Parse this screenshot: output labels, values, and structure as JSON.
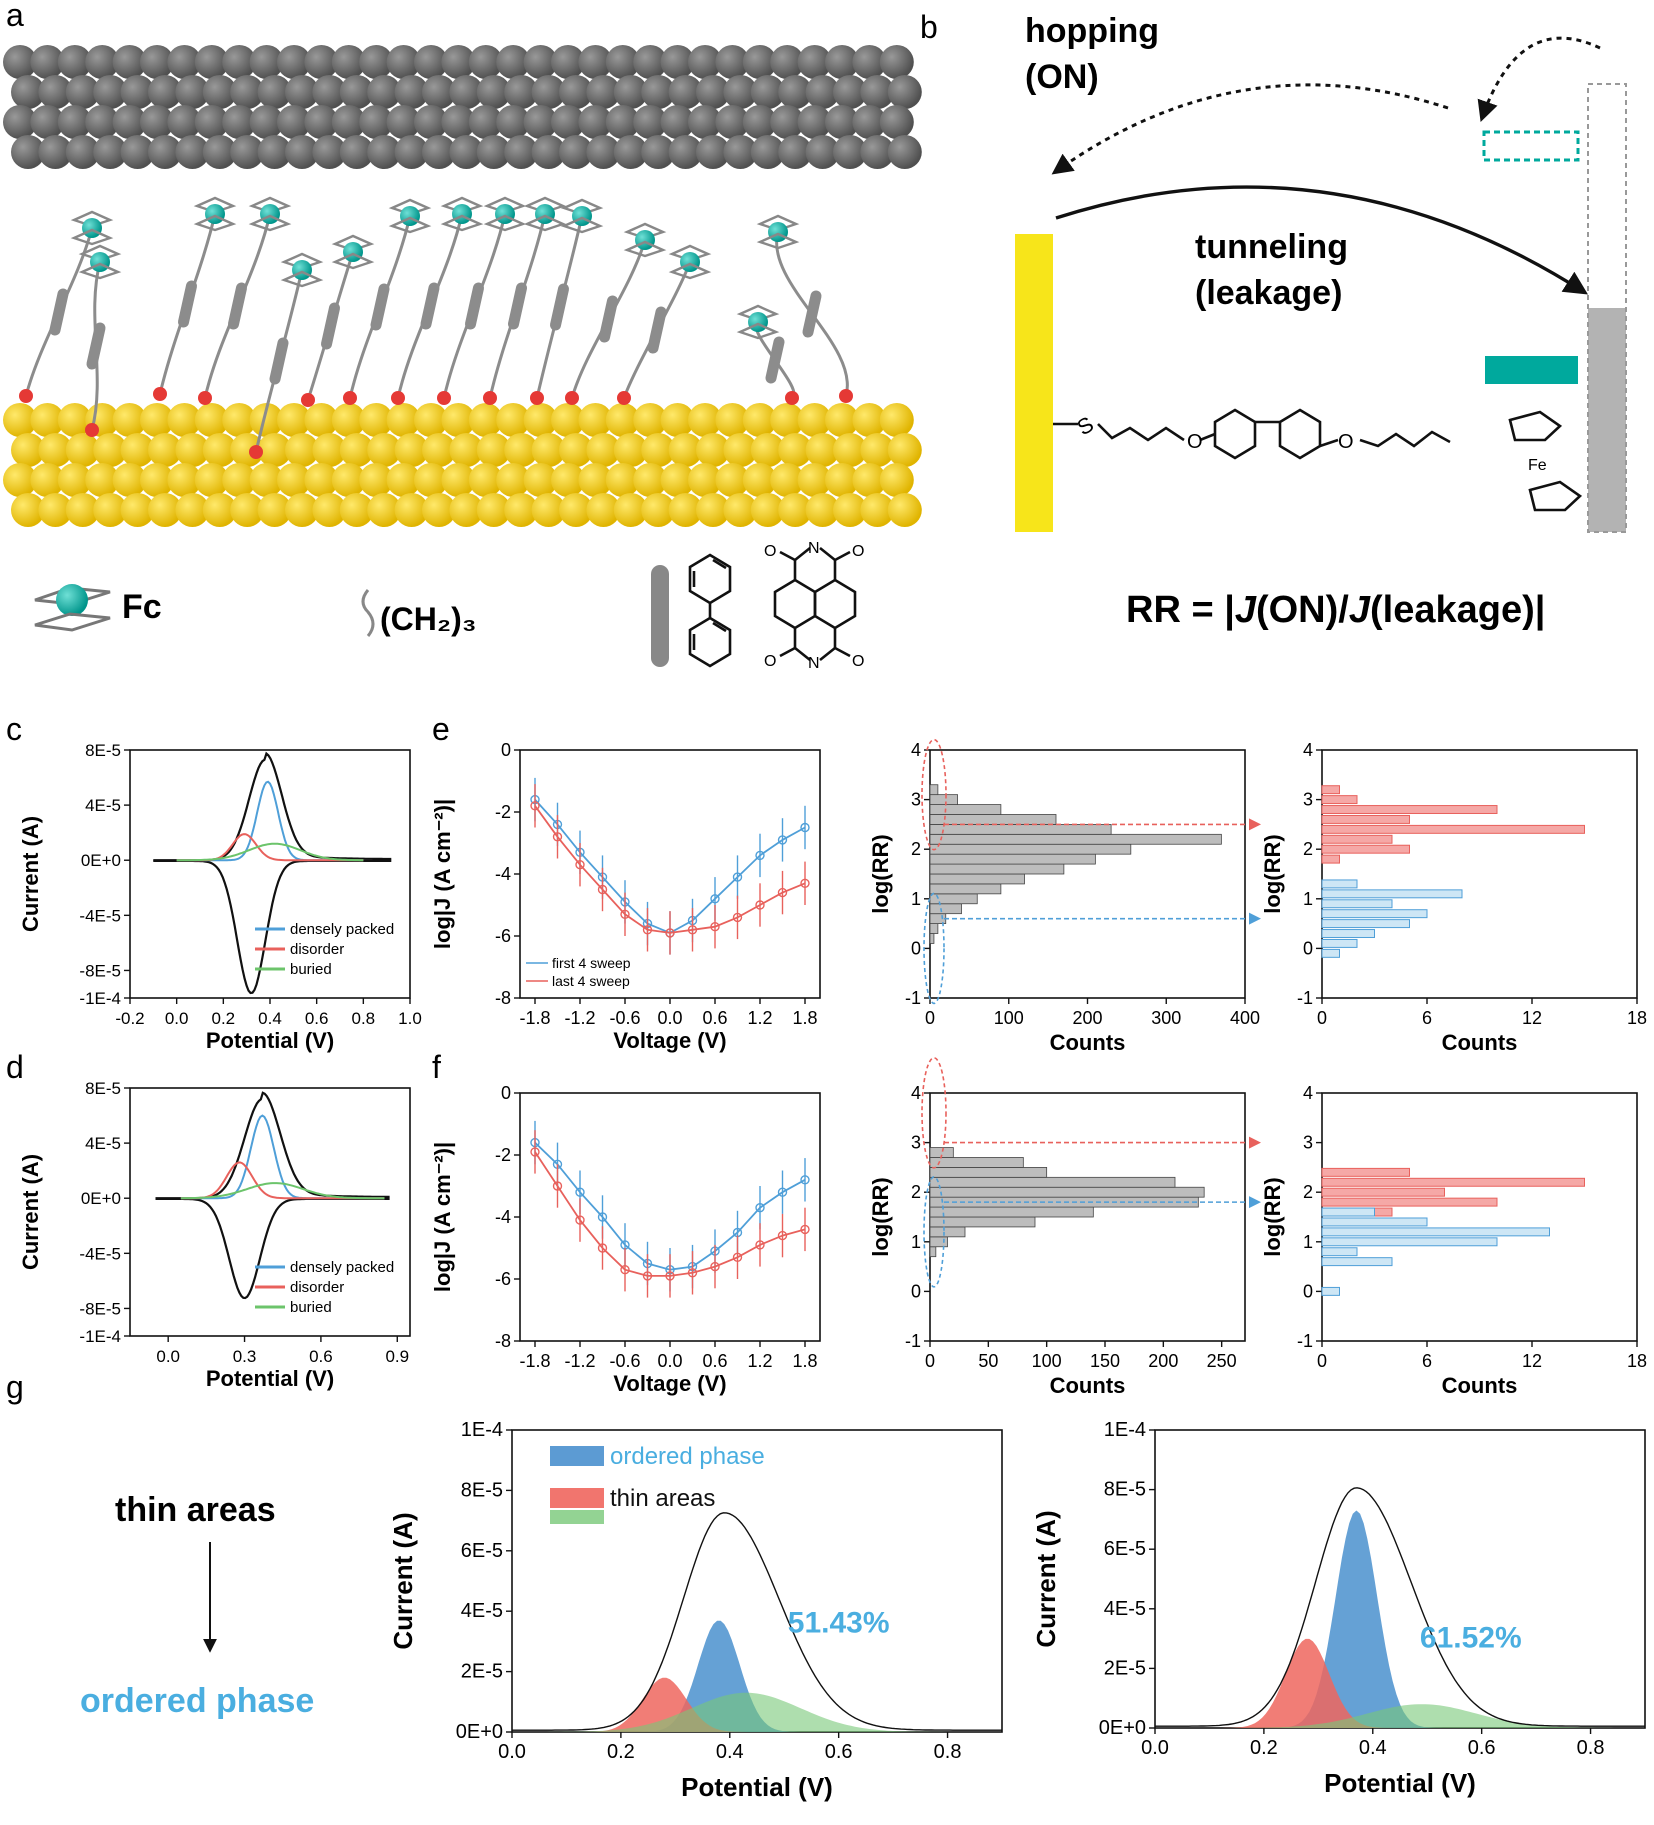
{
  "panels": {
    "a": {
      "letter": "a",
      "legend_fc": "Fc",
      "legend_chain": "(CH₂)₃"
    },
    "b": {
      "letter": "b",
      "hopping_line1": "hopping",
      "hopping_line2": "(ON)",
      "tunneling_line1": "tunneling",
      "tunneling_line2": "(leakage)",
      "rr_equation_prefix": "RR = |",
      "rr_j1": "J",
      "rr_mid": "(ON)/",
      "rr_j2": "J",
      "rr_suffix": "(leakage)|",
      "fe_label": "Fe",
      "s_label": "S",
      "o_label": "O"
    },
    "c": {
      "letter": "c"
    },
    "d": {
      "letter": "d"
    },
    "e": {
      "letter": "e"
    },
    "f": {
      "letter": "f"
    },
    "g": {
      "letter": "g",
      "text_top": "thin areas",
      "text_bottom": "ordered phase"
    },
    "naphthalimide_atoms": {
      "n": "N",
      "o": "O"
    }
  },
  "colors": {
    "gold": "#f5c800",
    "teal": "#00a99d",
    "gray_chain": "#8c8c8c",
    "blue": "#4f9fd8",
    "red": "#e8615c",
    "green": "#6cc46b",
    "yellow": "#f7e51a"
  },
  "chart_data": [
    {
      "id": "c",
      "type": "line",
      "xlabel": "Potential (V)",
      "ylabel": "Current (A)",
      "xlim": [
        -0.2,
        1.0
      ],
      "ylim": [
        -0.0001,
        8e-05
      ],
      "xticks": [
        "-0.2",
        "0.0",
        "0.2",
        "0.4",
        "0.6",
        "0.8",
        "1.0"
      ],
      "yticks": [
        "8E-5",
        "4E-5",
        "0E+0",
        "-4E-5",
        "-8E-5",
        "-1E-4"
      ],
      "legend": [
        "densely packed",
        "disorder",
        "buried"
      ],
      "series": [
        {
          "name": "densely packed",
          "peak_x": 0.39,
          "peak_y": 5.7e-05
        },
        {
          "name": "disorder",
          "peak_x": 0.29,
          "peak_y": 1.9e-05
        },
        {
          "name": "buried",
          "peak_x": 0.42,
          "peak_y": 1.2e-05
        }
      ],
      "cv_anodic_peak": [
        0.38,
        7.3e-05
      ],
      "cv_cathodic_peak": [
        0.32,
        -9.6e-05
      ]
    },
    {
      "id": "d",
      "type": "line",
      "xlabel": "Potential (V)",
      "ylabel": "Current (A)",
      "xlim": [
        -0.15,
        0.95
      ],
      "ylim": [
        -0.0001,
        8e-05
      ],
      "xticks": [
        "0.0",
        "0.3",
        "0.6",
        "0.9"
      ],
      "yticks": [
        "8E-5",
        "4E-5",
        "0E+0",
        "-4E-5",
        "-8E-5",
        "-1E-4"
      ],
      "legend": [
        "densely packed",
        "disorder",
        "buried"
      ],
      "series": [
        {
          "name": "densely packed",
          "peak_x": 0.37,
          "peak_y": 6e-05
        },
        {
          "name": "disorder",
          "peak_x": 0.28,
          "peak_y": 2.6e-05
        },
        {
          "name": "buried",
          "peak_x": 0.42,
          "peak_y": 1.1e-05
        }
      ],
      "cv_anodic_peak": [
        0.37,
        7.2e-05
      ],
      "cv_cathodic_peak": [
        0.3,
        -7.2e-05
      ]
    },
    {
      "id": "e-jv",
      "type": "line",
      "xlabel": "Voltage (V)",
      "ylabel": "log|J (A cm⁻²)|",
      "xlim": [
        -2.0,
        2.0
      ],
      "ylim": [
        -8,
        0
      ],
      "xticks": [
        "-1.8",
        "-1.2",
        "-0.6",
        "0.0",
        "0.6",
        "1.2",
        "1.8"
      ],
      "yticks": [
        "0",
        "-2",
        "-4",
        "-6",
        "-8"
      ],
      "x": [
        -1.8,
        -1.5,
        -1.2,
        -0.9,
        -0.6,
        -0.3,
        0.0,
        0.3,
        0.6,
        0.9,
        1.2,
        1.5,
        1.8
      ],
      "series": [
        {
          "name": "first 4 sweep",
          "values": [
            -1.6,
            -2.4,
            -3.3,
            -4.1,
            -4.9,
            -5.6,
            -5.9,
            -5.5,
            -4.8,
            -4.1,
            -3.4,
            -2.9,
            -2.5
          ]
        },
        {
          "name": "last 4 sweep",
          "values": [
            -1.8,
            -2.8,
            -3.7,
            -4.5,
            -5.3,
            -5.8,
            -5.9,
            -5.8,
            -5.7,
            -5.4,
            -5.0,
            -4.6,
            -4.3
          ]
        }
      ]
    },
    {
      "id": "e-hist",
      "type": "bar",
      "xlabel": "Counts",
      "ylabel": "log(RR)",
      "xlim": [
        0,
        400
      ],
      "ylim": [
        -1,
        4
      ],
      "xticks": [
        "0",
        "100",
        "200",
        "300",
        "400"
      ],
      "yticks": [
        "4",
        "3",
        "2",
        "1",
        "0",
        "-1"
      ],
      "bins": [
        0.2,
        0.4,
        0.6,
        0.8,
        1.0,
        1.2,
        1.4,
        1.6,
        1.8,
        2.0,
        2.2,
        2.4,
        2.6,
        2.8,
        3.0,
        3.2
      ],
      "values": [
        5,
        10,
        20,
        40,
        60,
        90,
        120,
        170,
        210,
        255,
        370,
        230,
        160,
        90,
        35,
        10
      ]
    },
    {
      "id": "e-split",
      "type": "bar",
      "xlabel": "Counts",
      "ylabel": "log(RR)",
      "xlim": [
        0,
        18
      ],
      "ylim": [
        -1,
        4
      ],
      "xticks": [
        "0",
        "6",
        "12",
        "18"
      ],
      "yticks": [
        "4",
        "3",
        "2",
        "1",
        "0",
        "-1"
      ],
      "series": [
        {
          "name": "high",
          "bins": [
            1.8,
            2.0,
            2.2,
            2.4,
            2.6,
            2.8,
            3.0,
            3.2
          ],
          "values": [
            1,
            5,
            4,
            15,
            5,
            10,
            2,
            1
          ]
        },
        {
          "name": "low",
          "bins": [
            -0.1,
            0.1,
            0.3,
            0.5,
            0.7,
            0.9,
            1.1,
            1.3
          ],
          "values": [
            1,
            2,
            3,
            5,
            6,
            4,
            8,
            2
          ]
        }
      ]
    },
    {
      "id": "f-jv",
      "type": "line",
      "xlabel": "Voltage (V)",
      "ylabel": "log|J (A cm⁻²)|",
      "xlim": [
        -2.0,
        2.0
      ],
      "ylim": [
        -8,
        0
      ],
      "xticks": [
        "-1.8",
        "-1.2",
        "-0.6",
        "0.0",
        "0.6",
        "1.2",
        "1.8"
      ],
      "yticks": [
        "0",
        "-2",
        "-4",
        "-6",
        "-8"
      ],
      "x": [
        -1.8,
        -1.5,
        -1.2,
        -0.9,
        -0.6,
        -0.3,
        0.0,
        0.3,
        0.6,
        0.9,
        1.2,
        1.5,
        1.8
      ],
      "series": [
        {
          "name": "first 4 sweep",
          "values": [
            -1.6,
            -2.3,
            -3.2,
            -4.0,
            -4.9,
            -5.5,
            -5.7,
            -5.6,
            -5.1,
            -4.5,
            -3.7,
            -3.2,
            -2.8
          ]
        },
        {
          "name": "last 4 sweep",
          "values": [
            -1.9,
            -3.0,
            -4.1,
            -5.0,
            -5.7,
            -5.9,
            -5.9,
            -5.8,
            -5.6,
            -5.3,
            -4.9,
            -4.6,
            -4.4
          ]
        }
      ]
    },
    {
      "id": "f-hist",
      "type": "bar",
      "xlabel": "Counts",
      "ylabel": "log(RR)",
      "xlim": [
        0,
        270
      ],
      "ylim": [
        -1,
        4
      ],
      "xticks": [
        "0",
        "50",
        "100",
        "150",
        "200",
        "250"
      ],
      "yticks": [
        "4",
        "3",
        "2",
        "1",
        "0",
        "-1"
      ],
      "bins": [
        0.8,
        1.0,
        1.2,
        1.4,
        1.6,
        1.8,
        2.0,
        2.2,
        2.4,
        2.6,
        2.8
      ],
      "values": [
        5,
        15,
        30,
        90,
        140,
        230,
        235,
        210,
        100,
        80,
        20
      ]
    },
    {
      "id": "f-split",
      "type": "bar",
      "xlabel": "Counts",
      "ylabel": "log(RR)",
      "xlim": [
        0,
        18
      ],
      "ylim": [
        -1,
        4
      ],
      "xticks": [
        "0",
        "6",
        "12",
        "18"
      ],
      "yticks": [
        "4",
        "3",
        "2",
        "1",
        "0",
        "-1"
      ],
      "series": [
        {
          "name": "high",
          "bins": [
            1.6,
            1.8,
            2.0,
            2.2,
            2.4
          ],
          "values": [
            4,
            10,
            7,
            15,
            5
          ]
        },
        {
          "name": "low",
          "bins": [
            0.0,
            0.6,
            0.8,
            1.0,
            1.2,
            1.4,
            1.6
          ],
          "values": [
            1,
            4,
            2,
            10,
            13,
            6,
            3
          ]
        }
      ]
    },
    {
      "id": "g-left",
      "type": "area",
      "xlabel": "Potential (V)",
      "ylabel": "Current (A)",
      "xlim": [
        0.0,
        0.9
      ],
      "ylim": [
        0,
        0.0001
      ],
      "xticks": [
        "0.0",
        "0.2",
        "0.4",
        "0.6",
        "0.8"
      ],
      "yticks": [
        "1E-4",
        "8E-5",
        "6E-5",
        "4E-5",
        "2E-5",
        "0E+0"
      ],
      "legend": [
        "ordered phase",
        "thin areas"
      ],
      "annotation": "51.43%",
      "series": [
        {
          "name": "ordered phase",
          "peak_x": 0.38,
          "peak_y": 3.7e-05
        },
        {
          "name": "thin areas",
          "peak_x": 0.28,
          "peak_y": 1.8e-05
        },
        {
          "peak_x": 0.43,
          "peak_y": 1.3e-05
        }
      ],
      "envelope_peak": [
        0.39,
        7.2e-05
      ]
    },
    {
      "id": "g-right",
      "type": "area",
      "xlabel": "Potential (V)",
      "ylabel": "Current (A)",
      "xlim": [
        0.0,
        0.9
      ],
      "ylim": [
        0,
        0.0001
      ],
      "xticks": [
        "0.0",
        "0.2",
        "0.4",
        "0.6",
        "0.8"
      ],
      "yticks": [
        "1E-4",
        "8E-5",
        "6E-5",
        "4E-5",
        "2E-5",
        "0E+0"
      ],
      "annotation": "61.52%",
      "series": [
        {
          "peak_x": 0.37,
          "peak_y": 7.3e-05
        },
        {
          "peak_x": 0.28,
          "peak_y": 3e-05
        },
        {
          "peak_x": 0.49,
          "peak_y": 8e-06
        }
      ],
      "envelope_peak": [
        0.37,
        8e-05
      ]
    }
  ]
}
